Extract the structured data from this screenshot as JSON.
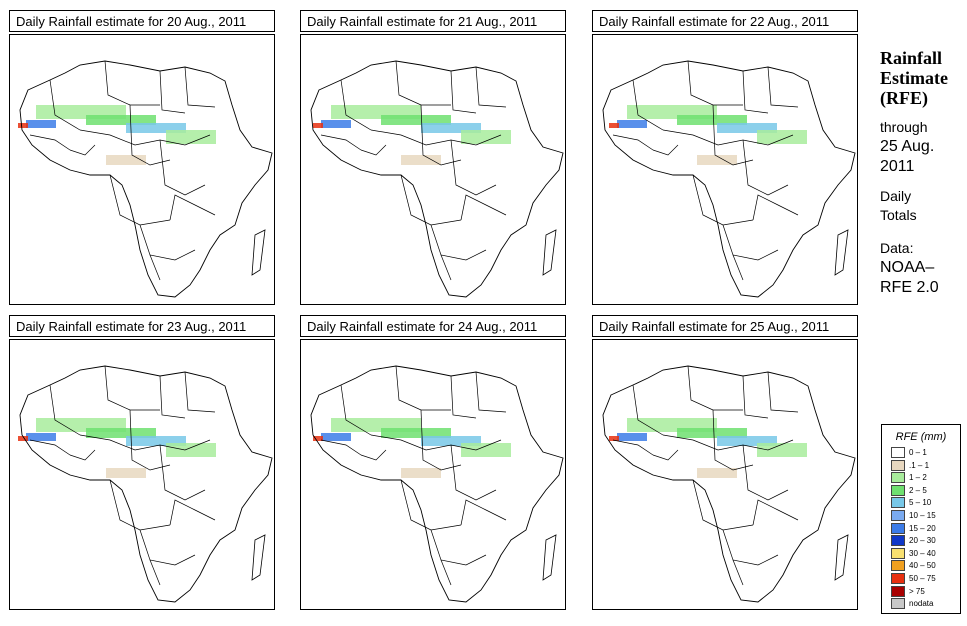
{
  "panels": [
    {
      "title": "Daily Rainfall estimate for  20 Aug., 2011"
    },
    {
      "title": "Daily Rainfall estimate for  21 Aug., 2011"
    },
    {
      "title": "Daily Rainfall estimate for  22 Aug., 2011"
    },
    {
      "title": "Daily Rainfall estimate for  23 Aug., 2011"
    },
    {
      "title": "Daily Rainfall estimate for  24 Aug., 2011"
    },
    {
      "title": "Daily Rainfall estimate for  25 Aug., 2011"
    }
  ],
  "sidebar": {
    "title_line1": "Rainfall",
    "title_line2": "Estimate",
    "title_line3": "(RFE)",
    "through": "through",
    "date_line1": "25 Aug.",
    "date_line2": "2011",
    "daily": "Daily",
    "totals": "Totals",
    "data_label": "Data:",
    "source_line1": "NOAA–",
    "source_line2": "RFE 2.0"
  },
  "legend": {
    "title": "RFE (mm)",
    "items": [
      {
        "label": "0 – 1",
        "color": "#ffffff"
      },
      {
        "label": ".1 – 1",
        "color": "#e8d8c0"
      },
      {
        "label": "1 – 2",
        "color": "#a8ec9c"
      },
      {
        "label": "2 – 5",
        "color": "#6fe070"
      },
      {
        "label": "5 – 10",
        "color": "#78c8e8"
      },
      {
        "label": "10 – 15",
        "color": "#7aaaf0"
      },
      {
        "label": "15 – 20",
        "color": "#3c7ce8"
      },
      {
        "label": "20 – 30",
        "color": "#1038c8"
      },
      {
        "label": "30 – 40",
        "color": "#f8e070"
      },
      {
        "label": "40 – 50",
        "color": "#f0a020"
      },
      {
        "label": "50 – 75",
        "color": "#e83010"
      },
      {
        "label": "> 75",
        "color": "#a80000"
      },
      {
        "label": "nodata",
        "color": "#c8c8c8"
      }
    ]
  }
}
